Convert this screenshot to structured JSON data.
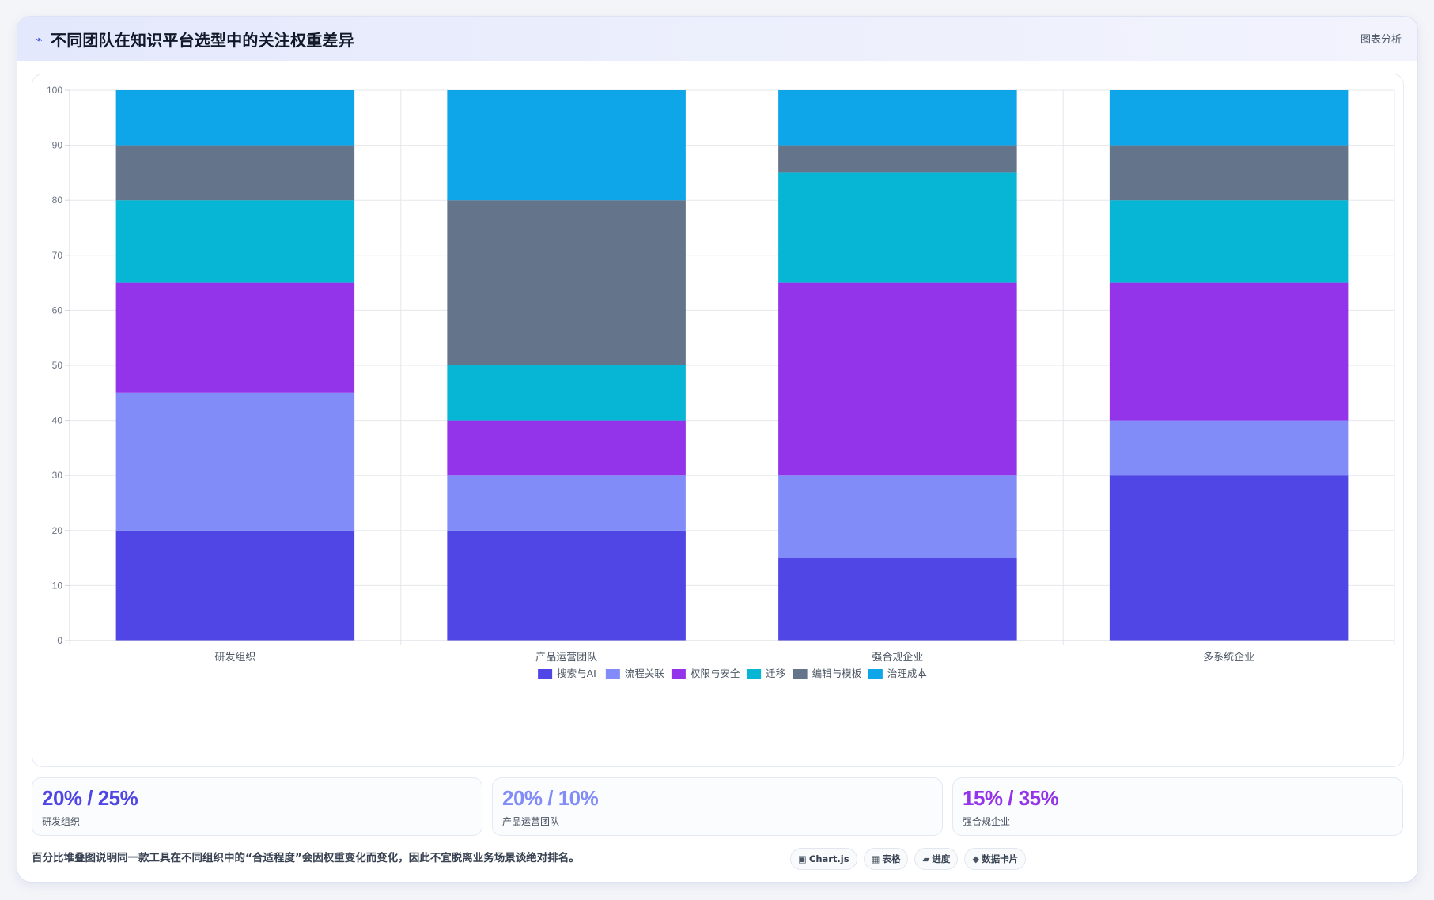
{
  "header": {
    "title": "不同团队在知识平台选型中的关注权重差异",
    "icon": "pulse-icon",
    "tag": "图表分析"
  },
  "chart_data": {
    "type": "bar",
    "stacked": true,
    "categories": [
      "研发组织",
      "产品运营团队",
      "强合规企业",
      "多系统企业"
    ],
    "series": [
      {
        "name": "搜索与AI",
        "color": "#4f46e5",
        "values": [
          20,
          20,
          15,
          30
        ]
      },
      {
        "name": "流程关联",
        "color": "#818cf8",
        "values": [
          25,
          10,
          15,
          10
        ]
      },
      {
        "name": "权限与安全",
        "color": "#9333ea",
        "values": [
          20,
          10,
          35,
          25
        ]
      },
      {
        "name": "迁移",
        "color": "#06b6d4",
        "values": [
          15,
          10,
          20,
          15
        ]
      },
      {
        "name": "编辑与模板",
        "color": "#64748b",
        "values": [
          10,
          30,
          5,
          10
        ]
      },
      {
        "name": "治理成本",
        "color": "#0ea5e9",
        "values": [
          10,
          20,
          10,
          10
        ]
      }
    ],
    "ylim": [
      0,
      100
    ],
    "yticks": [
      0,
      10,
      20,
      30,
      40,
      50,
      60,
      70,
      80,
      90,
      100
    ],
    "grid": true,
    "legend_position": "bottom"
  },
  "stats": [
    {
      "value": "20% / 25%",
      "label": "研发组织",
      "color": "#4f46e5"
    },
    {
      "value": "20% / 10%",
      "label": "产品运营团队",
      "color": "#818cf8"
    },
    {
      "value": "15% / 35%",
      "label": "强合规企业",
      "color": "#9333ea"
    }
  ],
  "footer": {
    "note": "百分比堆叠图说明同一款工具在不同组织中的“合适程度”会因权重变化而变化，因此不宜脱离业务场景谈绝对排名。",
    "chips": [
      {
        "icon": "▣",
        "label": "Chart.js",
        "icon_name": "chart-icon"
      },
      {
        "icon": "▦",
        "label": "表格",
        "icon_name": "table-icon"
      },
      {
        "icon": "▰",
        "label": "进度",
        "icon_name": "progress-icon"
      },
      {
        "icon": "◆",
        "label": "数据卡片",
        "icon_name": "card-icon"
      }
    ]
  }
}
